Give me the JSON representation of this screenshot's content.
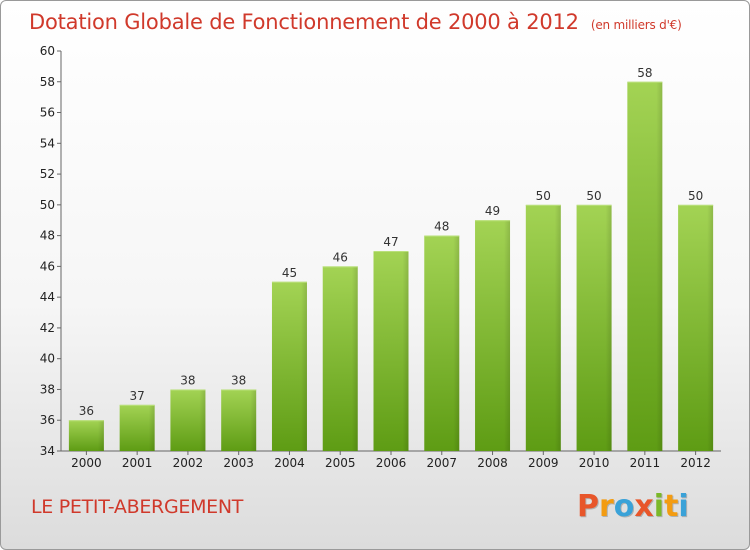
{
  "header": {
    "title": "Dotation Globale de Fonctionnement de 2000 à 2012",
    "subtitle": "(en milliers d'€)"
  },
  "commune": "LE PETIT-ABERGEMENT",
  "logo": {
    "letters": [
      "P",
      "r",
      "o",
      "x",
      "i",
      "t",
      "i"
    ],
    "colors": [
      "#e8562a",
      "#f39c12",
      "#3aa2d8",
      "#e8562a",
      "#7bb829",
      "#f39c12",
      "#3aa2d8"
    ]
  },
  "chart_data": {
    "type": "bar",
    "categories": [
      "2000",
      "2001",
      "2002",
      "2003",
      "2004",
      "2005",
      "2006",
      "2007",
      "2008",
      "2009",
      "2010",
      "2011",
      "2012"
    ],
    "values": [
      36,
      37,
      38,
      38,
      45,
      46,
      47,
      48,
      49,
      50,
      50,
      58,
      50
    ],
    "title": "Dotation Globale de Fonctionnement de 2000 à 2012",
    "ylim": [
      34,
      60
    ],
    "yticks": [
      34,
      36,
      38,
      40,
      42,
      44,
      46,
      48,
      50,
      52,
      54,
      56,
      58,
      60
    ],
    "grid": false,
    "bar_color": "#8cc63f"
  }
}
